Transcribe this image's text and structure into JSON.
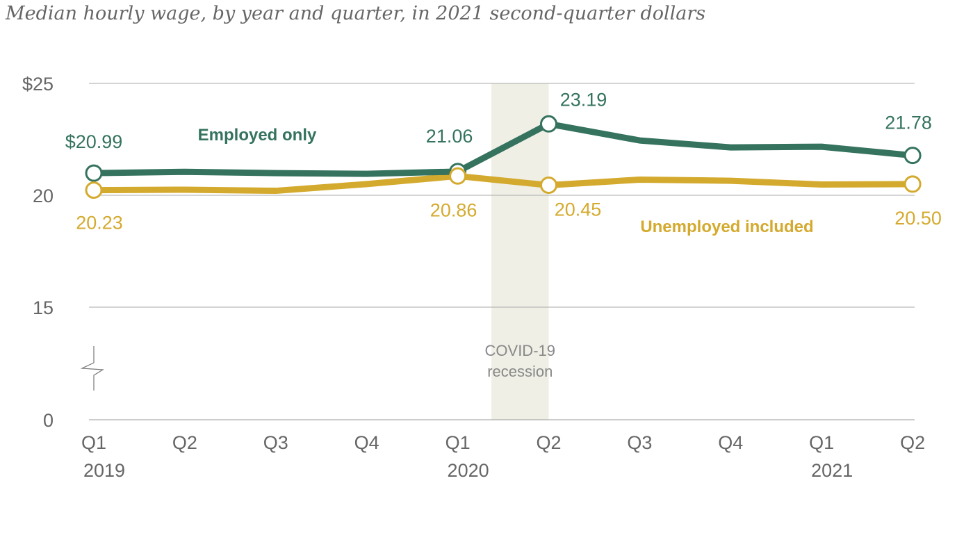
{
  "chart_data": {
    "type": "line",
    "title": "Median hourly wage, by year and quarter, in 2021 second-quarter dollars",
    "xlabel": "",
    "ylabel": "",
    "categories": [
      "Q1",
      "Q2",
      "Q3",
      "Q4",
      "Q1",
      "Q2",
      "Q3",
      "Q4",
      "Q1",
      "Q2"
    ],
    "year_labels": [
      {
        "index": 0,
        "label": "2019"
      },
      {
        "index": 4,
        "label": "2020"
      },
      {
        "index": 8,
        "label": "2021"
      }
    ],
    "y_ticks": [
      "$25",
      "20",
      "15",
      "0"
    ],
    "y_tick_values": [
      25,
      20,
      15,
      0
    ],
    "ylim": [
      0,
      25
    ],
    "axis_break": true,
    "grid": true,
    "series": [
      {
        "name": "Employed only",
        "color": "#35735f",
        "values": [
          20.99,
          21.05,
          20.99,
          20.96,
          21.06,
          23.19,
          22.45,
          22.14,
          22.17,
          21.78
        ],
        "labels": [
          {
            "index": 0,
            "text": "$20.99"
          },
          {
            "index": 4,
            "text": "21.06"
          },
          {
            "index": 5,
            "text": "23.19"
          },
          {
            "index": 9,
            "text": "21.78"
          }
        ]
      },
      {
        "name": "Unemployed included",
        "color": "#d4aa2e",
        "values": [
          20.23,
          20.25,
          20.2,
          20.5,
          20.86,
          20.45,
          20.7,
          20.65,
          20.48,
          20.5
        ],
        "labels": [
          {
            "index": 0,
            "text": "20.23"
          },
          {
            "index": 4,
            "text": "20.86"
          },
          {
            "index": 5,
            "text": "20.45"
          },
          {
            "index": 9,
            "text": "20.50"
          }
        ]
      }
    ],
    "shaded_region": {
      "from": 4.37,
      "to": 5,
      "label_lines": [
        "COVID-19",
        "recession"
      ],
      "color": "#efefe6"
    }
  }
}
